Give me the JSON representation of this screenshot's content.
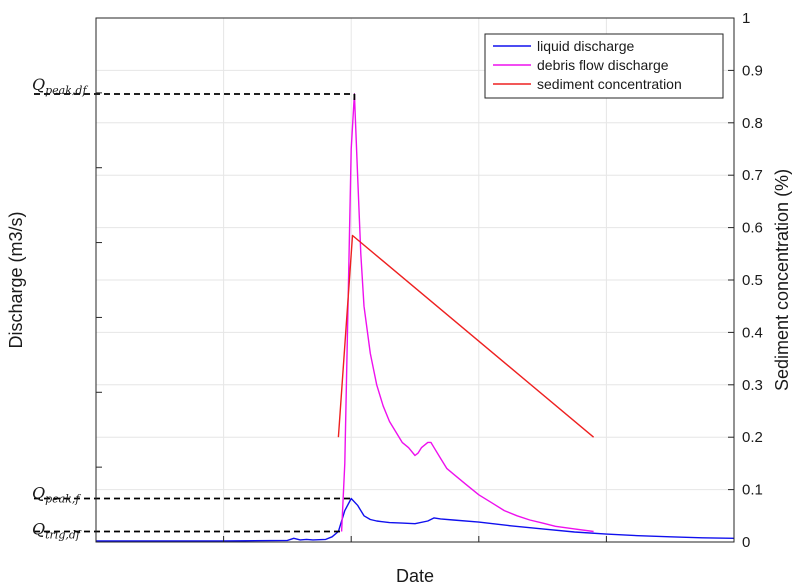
{
  "chart_data": {
    "type": "line",
    "xlabel": "Date",
    "ylabel": "Discharge (m3/s)",
    "y2label": "Sediment concentration (%)",
    "xlim": [
      0,
      100
    ],
    "ylim": [
      0,
      1
    ],
    "y2lim": [
      0,
      1
    ],
    "y2_ticks": [
      "0",
      "0.1",
      "0.2",
      "0.3",
      "0.4",
      "0.5",
      "0.6",
      "0.7",
      "0.8",
      "0.9",
      "1"
    ],
    "grid": true,
    "legend_position": "top-right",
    "series": [
      {
        "name": "liquid discharge",
        "color": "#1010ee",
        "axis": "left",
        "x": [
          0,
          20,
          30,
          31,
          32,
          33,
          34,
          36,
          37,
          38,
          39,
          40,
          41,
          42,
          43,
          44,
          46,
          48,
          50,
          52,
          53,
          54,
          56,
          60,
          65,
          70,
          75,
          80,
          85,
          90,
          95,
          100
        ],
        "y": [
          0.002,
          0.002,
          0.003,
          0.007,
          0.004,
          0.005,
          0.004,
          0.005,
          0.01,
          0.02,
          0.06,
          0.083,
          0.07,
          0.05,
          0.043,
          0.04,
          0.037,
          0.036,
          0.035,
          0.04,
          0.046,
          0.044,
          0.042,
          0.038,
          0.031,
          0.025,
          0.019,
          0.015,
          0.012,
          0.01,
          0.008,
          0.007
        ]
      },
      {
        "name": "debris flow discharge",
        "color": "#ee10ee",
        "axis": "left",
        "x": [
          38.5,
          39,
          39.5,
          40,
          40.5,
          41,
          41.5,
          42,
          43,
          44,
          45,
          46,
          47,
          48,
          49,
          50,
          50.5,
          51,
          52,
          52.5,
          53,
          54,
          55,
          56,
          58,
          60,
          62,
          64,
          66,
          68,
          70,
          72,
          75,
          78
        ],
        "y": [
          0.02,
          0.15,
          0.45,
          0.75,
          0.855,
          0.7,
          0.55,
          0.45,
          0.36,
          0.3,
          0.26,
          0.23,
          0.21,
          0.19,
          0.18,
          0.165,
          0.17,
          0.18,
          0.19,
          0.19,
          0.18,
          0.16,
          0.14,
          0.13,
          0.11,
          0.09,
          0.075,
          0.06,
          0.05,
          0.042,
          0.036,
          0.03,
          0.025,
          0.02
        ]
      },
      {
        "name": "sediment concentration",
        "color": "#ee2020",
        "axis": "right",
        "x": [
          38,
          40.2,
          78
        ],
        "y": [
          0.2,
          0.585,
          0.2
        ]
      }
    ],
    "annotations": [
      {
        "label": "Q",
        "sub": "peak,df",
        "y": 0.855
      },
      {
        "label": "Q",
        "sub": "peak,f",
        "y": 0.083
      },
      {
        "label": "Q",
        "sub": "trig,df",
        "y": 0.02
      }
    ]
  }
}
